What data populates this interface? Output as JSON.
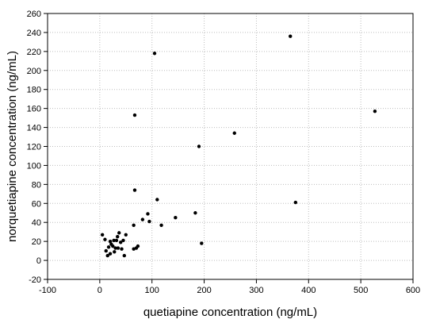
{
  "chart_data": {
    "type": "scatter",
    "xlabel": "quetiapine concentration (ng/mL)",
    "ylabel": "norquetiapine concentration (ng/mL)",
    "xlim": [
      -100,
      600
    ],
    "ylim": [
      -20,
      260
    ],
    "xticks": [
      -100,
      0,
      100,
      200,
      300,
      400,
      500,
      600
    ],
    "yticks": [
      -20,
      0,
      20,
      40,
      60,
      80,
      100,
      120,
      140,
      160,
      180,
      200,
      220,
      240,
      260
    ],
    "grid": true,
    "grid_style": "dotted",
    "marker_color": "#000000",
    "points": [
      {
        "x": 5,
        "y": 27
      },
      {
        "x": 10,
        "y": 22
      },
      {
        "x": 12,
        "y": 10
      },
      {
        "x": 15,
        "y": 5
      },
      {
        "x": 17,
        "y": 14
      },
      {
        "x": 20,
        "y": 7
      },
      {
        "x": 20,
        "y": 20
      },
      {
        "x": 22,
        "y": 17
      },
      {
        "x": 25,
        "y": 15
      },
      {
        "x": 27,
        "y": 21
      },
      {
        "x": 28,
        "y": 9
      },
      {
        "x": 30,
        "y": 13
      },
      {
        "x": 32,
        "y": 21
      },
      {
        "x": 34,
        "y": 25
      },
      {
        "x": 35,
        "y": 13
      },
      {
        "x": 37,
        "y": 29
      },
      {
        "x": 40,
        "y": 19
      },
      {
        "x": 42,
        "y": 12
      },
      {
        "x": 45,
        "y": 21
      },
      {
        "x": 47,
        "y": 5
      },
      {
        "x": 50,
        "y": 27
      },
      {
        "x": 65,
        "y": 37
      },
      {
        "x": 65,
        "y": 12
      },
      {
        "x": 67,
        "y": 74
      },
      {
        "x": 67,
        "y": 153
      },
      {
        "x": 70,
        "y": 13
      },
      {
        "x": 73,
        "y": 15
      },
      {
        "x": 82,
        "y": 43
      },
      {
        "x": 92,
        "y": 49
      },
      {
        "x": 95,
        "y": 41
      },
      {
        "x": 105,
        "y": 218
      },
      {
        "x": 110,
        "y": 64
      },
      {
        "x": 118,
        "y": 37
      },
      {
        "x": 145,
        "y": 45
      },
      {
        "x": 183,
        "y": 50
      },
      {
        "x": 190,
        "y": 120
      },
      {
        "x": 195,
        "y": 18
      },
      {
        "x": 258,
        "y": 134
      },
      {
        "x": 365,
        "y": 236
      },
      {
        "x": 375,
        "y": 61
      },
      {
        "x": 527,
        "y": 157
      }
    ]
  }
}
